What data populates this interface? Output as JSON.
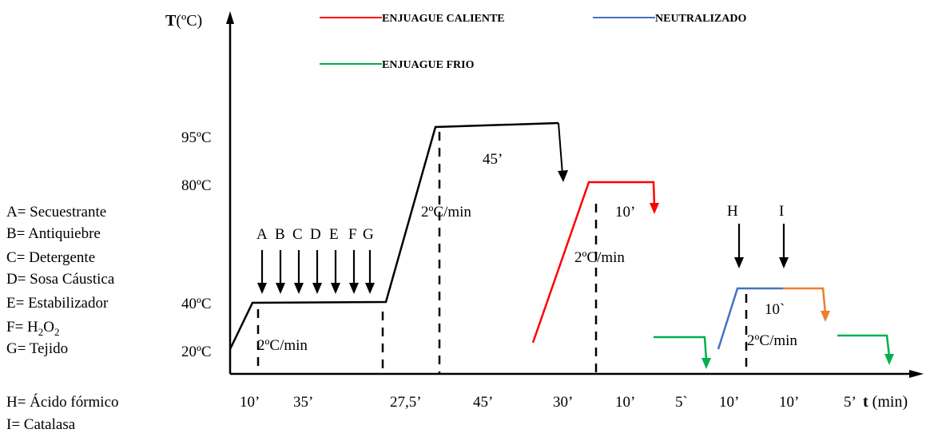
{
  "axes": {
    "y_title_bold": "T",
    "y_title_rest": "(ºC)",
    "x_title_bold": "t",
    "x_title_rest": " (min)"
  },
  "y_ticks": [
    "95ºC",
    "80ºC",
    "40ºC",
    "20ºC"
  ],
  "x_ticks": [
    "10’",
    "35’",
    "27,5’",
    "45’",
    "30’",
    "10’",
    "5`",
    "10’",
    "10’",
    "5’"
  ],
  "legend": [
    {
      "label": "ENJUAGUE CALIENTE",
      "color": "#ff0000"
    },
    {
      "label": "NEUTRALIZADO",
      "color": "#4472c4"
    },
    {
      "label": "ENJUAGUE FRIO",
      "color": "#00b050"
    }
  ],
  "colors": {
    "axis": "#000000",
    "process": "#000000",
    "hot_rinse": "#ff0000",
    "neutralize": "#4472c4",
    "cold_rinse": "#00b050",
    "enzyme": "#ed7d31"
  },
  "additions": [
    "A",
    "B",
    "C",
    "D",
    "E",
    "F",
    "G"
  ],
  "additions_late": [
    "H",
    "I"
  ],
  "annotations": {
    "rate_1": "2ºC/min",
    "rate_2": "2ºC/min",
    "rate_3": "2ºC/min",
    "rate_4": "2ºC/min",
    "hold_95": "45’",
    "hold_80": "10’",
    "hold_enzyme": "10`"
  },
  "key": [
    "A= Secuestrante",
    "B= Antiquiebre",
    "C= Detergente",
    "D= Sosa Cáustica",
    "E= Estabilizador",
    {
      "prefix": "F= H",
      "sub1": "2",
      "mid": "O",
      "sub2": "2"
    },
    "G= Tejido",
    "H= Ácido fórmico",
    "I= Catalasa"
  ]
}
